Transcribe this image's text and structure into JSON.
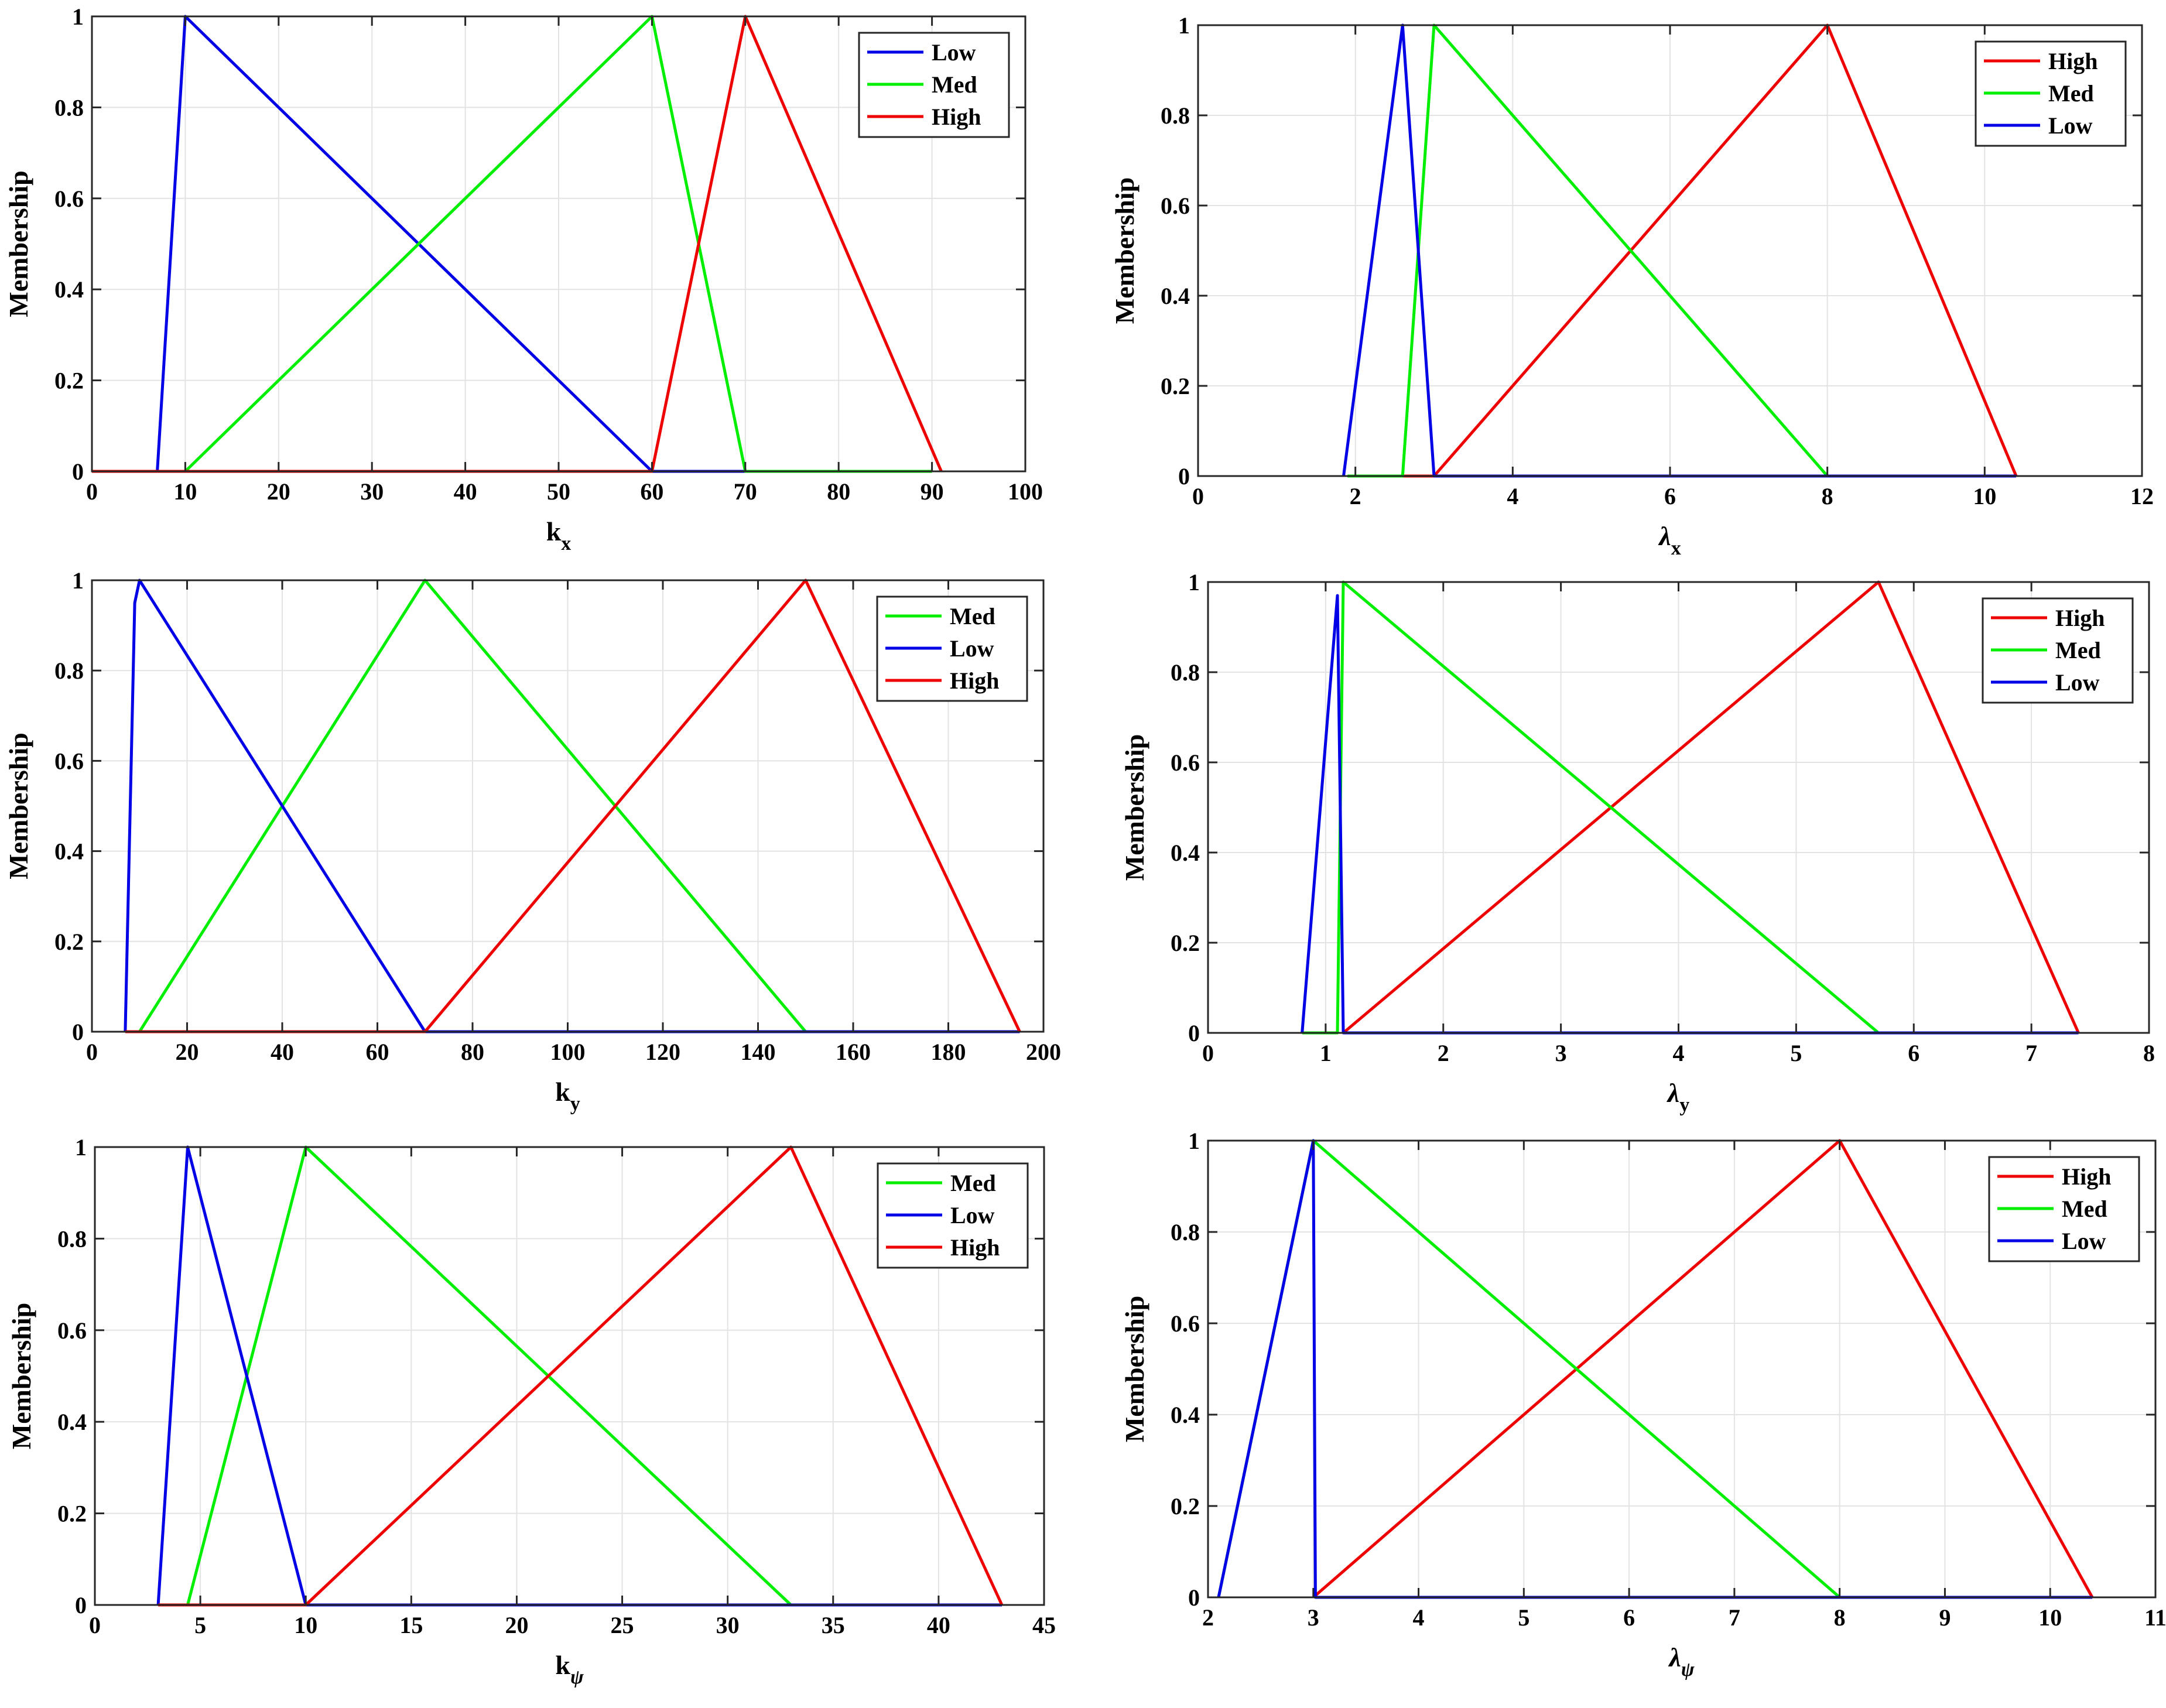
{
  "colors": {
    "Low": "#0000e6",
    "Med": "#00ee00",
    "High": "#ee0000",
    "axis": "#262626",
    "grid": "#e3e3e3"
  },
  "chart_data": [
    {
      "type": "line",
      "ylabel": "Membership",
      "xlabel": {
        "base": "k",
        "sub": "x"
      },
      "xlim": [
        0,
        100
      ],
      "ylim": [
        0,
        1
      ],
      "xticks": [
        0,
        10,
        20,
        30,
        40,
        50,
        60,
        70,
        80,
        90,
        100
      ],
      "xtick_labels": [
        "0",
        "10",
        "20",
        "30",
        "40",
        "50",
        "60",
        "70",
        "80",
        "90",
        "100"
      ],
      "yticks": [
        0,
        0.2,
        0.4,
        0.6,
        0.8,
        1
      ],
      "ytick_labels": [
        "0",
        "0.2",
        "0.4",
        "0.6",
        "0.8",
        "1"
      ],
      "legend_position": "top-right",
      "legend_order": [
        "Low",
        "Med",
        "High"
      ],
      "series": [
        {
          "name": "Low",
          "x": [
            7,
            10,
            60,
            70
          ],
          "y": [
            0,
            1,
            0,
            0
          ]
        },
        {
          "name": "Med",
          "x": [
            10,
            60,
            70,
            90
          ],
          "y": [
            0,
            1,
            0,
            0
          ]
        },
        {
          "name": "High",
          "x": [
            0,
            60,
            70,
            91
          ],
          "y": [
            0,
            0,
            1,
            0
          ]
        }
      ]
    },
    {
      "type": "line",
      "ylabel": "Membership",
      "xlabel": {
        "base": "λ",
        "sub": "x"
      },
      "xlim": [
        0,
        12
      ],
      "ylim": [
        0,
        1
      ],
      "xticks": [
        0,
        2,
        4,
        6,
        8,
        10,
        12
      ],
      "xtick_labels": [
        "0",
        "2",
        "4",
        "6",
        "8",
        "10",
        "12"
      ],
      "yticks": [
        0,
        0.2,
        0.4,
        0.6,
        0.8,
        1
      ],
      "ytick_labels": [
        "0",
        "0.2",
        "0.4",
        "0.6",
        "0.8",
        "1"
      ],
      "legend_position": "top-right",
      "legend_order": [
        "High",
        "Med",
        "Low"
      ],
      "series": [
        {
          "name": "High",
          "x": [
            2.6,
            3,
            8,
            10.4
          ],
          "y": [
            0,
            0,
            1,
            0
          ]
        },
        {
          "name": "Med",
          "x": [
            1.9,
            2.6,
            3,
            8
          ],
          "y": [
            0,
            0,
            1,
            0
          ]
        },
        {
          "name": "Low",
          "x": [
            1.85,
            2.6,
            3,
            10.4
          ],
          "y": [
            0,
            1,
            0,
            0
          ]
        }
      ]
    },
    {
      "type": "line",
      "ylabel": "Membership",
      "xlabel": {
        "base": "k",
        "sub": "y"
      },
      "xlim": [
        0,
        200
      ],
      "ylim": [
        0,
        1
      ],
      "xticks": [
        0,
        20,
        40,
        60,
        80,
        100,
        120,
        140,
        160,
        180,
        200
      ],
      "xtick_labels": [
        "0",
        "20",
        "40",
        "60",
        "80",
        "100",
        "120",
        "140",
        "160",
        "180",
        "200"
      ],
      "yticks": [
        0,
        0.2,
        0.4,
        0.6,
        0.8,
        1
      ],
      "ytick_labels": [
        "0",
        "0.2",
        "0.4",
        "0.6",
        "0.8",
        "1"
      ],
      "legend_position": "top-right",
      "legend_order": [
        "Med",
        "Low",
        "High"
      ],
      "series": [
        {
          "name": "Med",
          "x": [
            10,
            70,
            150
          ],
          "y": [
            0,
            1,
            0
          ]
        },
        {
          "name": "Low",
          "x": [
            7,
            9,
            10,
            70,
            195
          ],
          "y": [
            0,
            0.95,
            1,
            0,
            0
          ]
        },
        {
          "name": "High",
          "x": [
            7,
            70,
            150,
            195
          ],
          "y": [
            0,
            0,
            1,
            0
          ]
        }
      ]
    },
    {
      "type": "line",
      "ylabel": "Membership",
      "xlabel": {
        "base": "λ",
        "sub": "y"
      },
      "xlim": [
        0,
        8
      ],
      "ylim": [
        0,
        1
      ],
      "xticks": [
        0,
        1,
        2,
        3,
        4,
        5,
        6,
        7,
        8
      ],
      "xtick_labels": [
        "0",
        "1",
        "2",
        "3",
        "4",
        "5",
        "6",
        "7",
        "8"
      ],
      "yticks": [
        0,
        0.2,
        0.4,
        0.6,
        0.8,
        1
      ],
      "ytick_labels": [
        "0",
        "0.2",
        "0.4",
        "0.6",
        "0.8",
        "1"
      ],
      "legend_position": "top-right",
      "legend_order": [
        "High",
        "Med",
        "Low"
      ],
      "series": [
        {
          "name": "High",
          "x": [
            1.15,
            5.7,
            7.4
          ],
          "y": [
            0,
            1,
            0
          ]
        },
        {
          "name": "Med",
          "x": [
            0.8,
            1.1,
            1.15,
            5.7
          ],
          "y": [
            0,
            0,
            1,
            0
          ]
        },
        {
          "name": "Low",
          "x": [
            0.8,
            1.1,
            1.15,
            7.4
          ],
          "y": [
            0,
            0.97,
            0,
            0
          ]
        }
      ]
    },
    {
      "type": "line",
      "ylabel": "Membership",
      "xlabel": {
        "base": "k",
        "sub": "ψ"
      },
      "xlim": [
        0,
        45
      ],
      "ylim": [
        0,
        1
      ],
      "xticks": [
        0,
        5,
        10,
        15,
        20,
        25,
        30,
        35,
        40,
        45
      ],
      "xtick_labels": [
        "0",
        "5",
        "10",
        "15",
        "20",
        "25",
        "30",
        "35",
        "40",
        "45"
      ],
      "yticks": [
        0,
        0.2,
        0.4,
        0.6,
        0.8,
        1
      ],
      "ytick_labels": [
        "0",
        "0.2",
        "0.4",
        "0.6",
        "0.8",
        "1"
      ],
      "legend_position": "top-right",
      "legend_order": [
        "Med",
        "Low",
        "High"
      ],
      "series": [
        {
          "name": "Med",
          "x": [
            4.4,
            10,
            33
          ],
          "y": [
            0,
            1,
            0
          ]
        },
        {
          "name": "Low",
          "x": [
            3,
            4.4,
            10,
            43
          ],
          "y": [
            0,
            1,
            0,
            0
          ]
        },
        {
          "name": "High",
          "x": [
            3,
            10,
            33,
            43
          ],
          "y": [
            0,
            0,
            1,
            0
          ]
        }
      ]
    },
    {
      "type": "line",
      "ylabel": "Membership",
      "xlabel": {
        "base": "λ",
        "sub": "ψ"
      },
      "xlim": [
        2,
        11
      ],
      "ylim": [
        0,
        1
      ],
      "xticks": [
        2,
        3,
        4,
        5,
        6,
        7,
        8,
        9,
        10,
        11
      ],
      "xtick_labels": [
        "2",
        "3",
        "4",
        "5",
        "6",
        "7",
        "8",
        "9",
        "10",
        "11"
      ],
      "yticks": [
        0,
        0.2,
        0.4,
        0.6,
        0.8,
        1
      ],
      "ytick_labels": [
        "0",
        "0.2",
        "0.4",
        "0.6",
        "0.8",
        "1"
      ],
      "legend_position": "top-right",
      "legend_order": [
        "High",
        "Med",
        "Low"
      ],
      "series": [
        {
          "name": "High",
          "x": [
            3,
            8,
            10.4
          ],
          "y": [
            0,
            1,
            0
          ]
        },
        {
          "name": "Med",
          "x": [
            2.1,
            3,
            8
          ],
          "y": [
            0,
            1,
            0
          ]
        },
        {
          "name": "Low",
          "x": [
            2.1,
            3,
            3.02,
            10.4
          ],
          "y": [
            0,
            1,
            0,
            0
          ]
        }
      ]
    }
  ]
}
